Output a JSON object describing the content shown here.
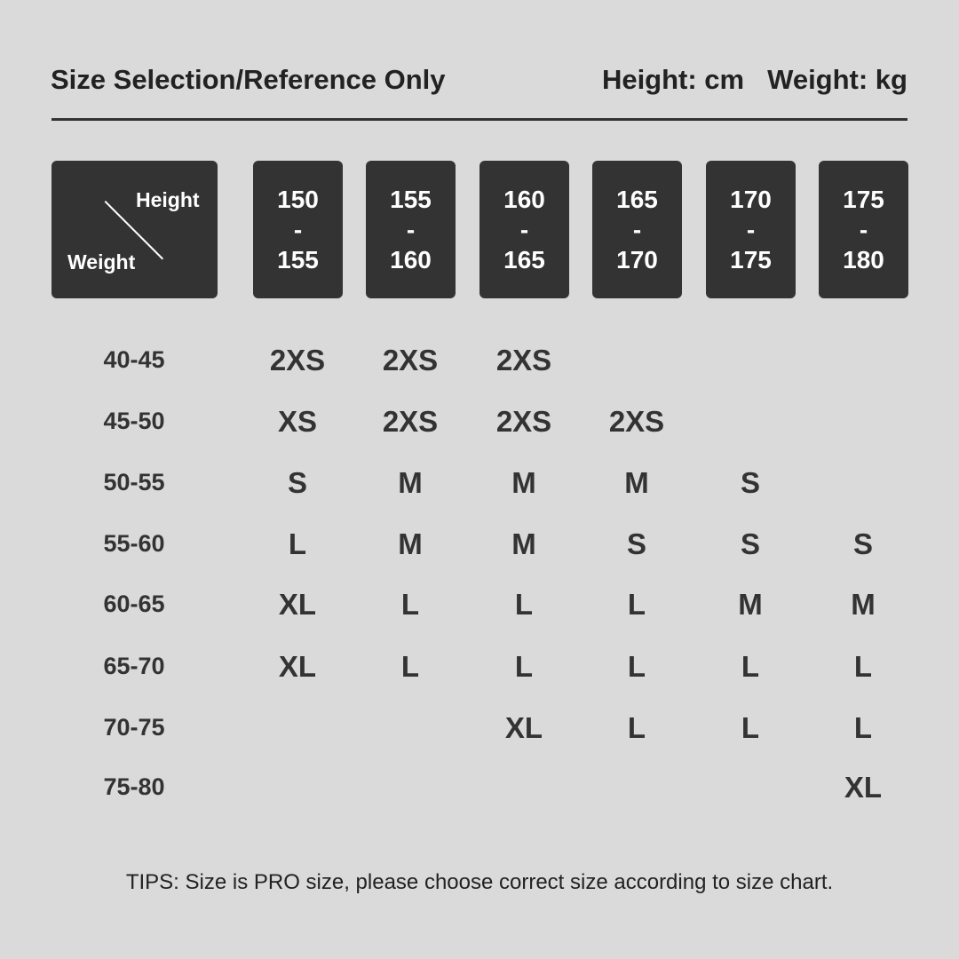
{
  "header": {
    "title": "Size Selection/Reference Only",
    "height_unit": "Height: cm",
    "weight_unit": "Weight: kg"
  },
  "corner": {
    "height_label": "Height",
    "weight_label": "Weight"
  },
  "heights": [
    {
      "from": "150",
      "sep": "-",
      "to": "155"
    },
    {
      "from": "155",
      "sep": "-",
      "to": "160"
    },
    {
      "from": "160",
      "sep": "-",
      "to": "165"
    },
    {
      "from": "165",
      "sep": "-",
      "to": "170"
    },
    {
      "from": "170",
      "sep": "-",
      "to": "175"
    },
    {
      "from": "175",
      "sep": "-",
      "to": "180"
    }
  ],
  "rows": [
    {
      "weight": "40-45",
      "sizes": [
        "2XS",
        "2XS",
        "2XS",
        "",
        "",
        ""
      ]
    },
    {
      "weight": "45-50",
      "sizes": [
        "XS",
        "2XS",
        "2XS",
        "2XS",
        "",
        ""
      ]
    },
    {
      "weight": "50-55",
      "sizes": [
        "S",
        "M",
        "M",
        "M",
        "S",
        ""
      ]
    },
    {
      "weight": "55-60",
      "sizes": [
        "L",
        "M",
        "M",
        "S",
        "S",
        "S"
      ]
    },
    {
      "weight": "60-65",
      "sizes": [
        "XL",
        "L",
        "L",
        "L",
        "M",
        "M"
      ]
    },
    {
      "weight": "65-70",
      "sizes": [
        "XL",
        "L",
        "L",
        "L",
        "L",
        "L"
      ]
    },
    {
      "weight": "70-75",
      "sizes": [
        "",
        "",
        "XL",
        "L",
        "L",
        "L"
      ]
    },
    {
      "weight": "75-80",
      "sizes": [
        "",
        "",
        "",
        "",
        "",
        "XL"
      ]
    }
  ],
  "tips": "TIPS: Size is PRO size, please choose correct size according to size chart."
}
